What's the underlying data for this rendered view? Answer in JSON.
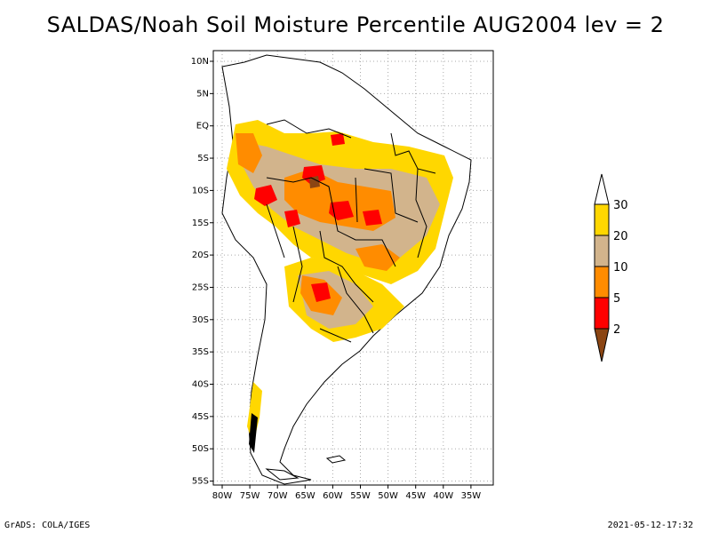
{
  "title": "SALDAS/Noah Soil Moisture Percentile AUG2004 lev = 2",
  "axes": {
    "lat_labels": [
      "10N",
      "5N",
      "EQ",
      "5S",
      "10S",
      "15S",
      "20S",
      "25S",
      "30S",
      "35S",
      "40S",
      "45S",
      "50S",
      "55S"
    ],
    "lon_labels": [
      "80W",
      "75W",
      "70W",
      "65W",
      "60W",
      "55W",
      "50W",
      "45W",
      "40W",
      "35W"
    ]
  },
  "colorbar": {
    "labels": [
      "30",
      "20",
      "10",
      "5",
      "2"
    ],
    "colors": {
      "above30": "#ffffff",
      "c20_30": "#ffd700",
      "c10_20": "#d2b48c",
      "c5_10": "#ff8c00",
      "c2_5": "#ff0000",
      "below2": "#8b4513"
    }
  },
  "footer": {
    "left": "GrADS: COLA/IGES",
    "right": "2021-05-12-17:32"
  }
}
